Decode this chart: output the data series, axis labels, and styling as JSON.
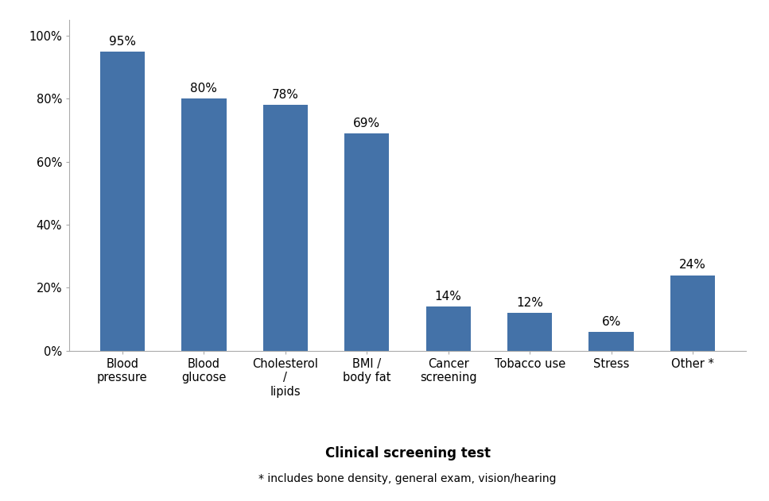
{
  "categories": [
    "Blood\npressure",
    "Blood\nglucose",
    "Cholesterol\n/\nlipids",
    "BMI /\nbody fat",
    "Cancer\nscreening",
    "Tobacco use",
    "Stress",
    "Other *"
  ],
  "values": [
    0.95,
    0.8,
    0.78,
    0.69,
    0.14,
    0.12,
    0.06,
    0.24
  ],
  "labels": [
    "95%",
    "80%",
    "78%",
    "69%",
    "14%",
    "12%",
    "6%",
    "24%"
  ],
  "bar_color": "#4472a8",
  "xlabel": "Clinical screening test",
  "footnote": "* includes bone density, general exam, vision/hearing",
  "ylim": [
    0,
    1.05
  ],
  "yticks": [
    0,
    0.2,
    0.4,
    0.6,
    0.8,
    1.0
  ],
  "ytick_labels": [
    "0%",
    "20%",
    "40%",
    "60%",
    "80%",
    "100%"
  ],
  "bar_width": 0.55,
  "label_fontsize": 11,
  "tick_fontsize": 10.5,
  "xlabel_fontsize": 12,
  "footnote_fontsize": 10,
  "background_color": "#ffffff",
  "spine_color": "#aaaaaa"
}
